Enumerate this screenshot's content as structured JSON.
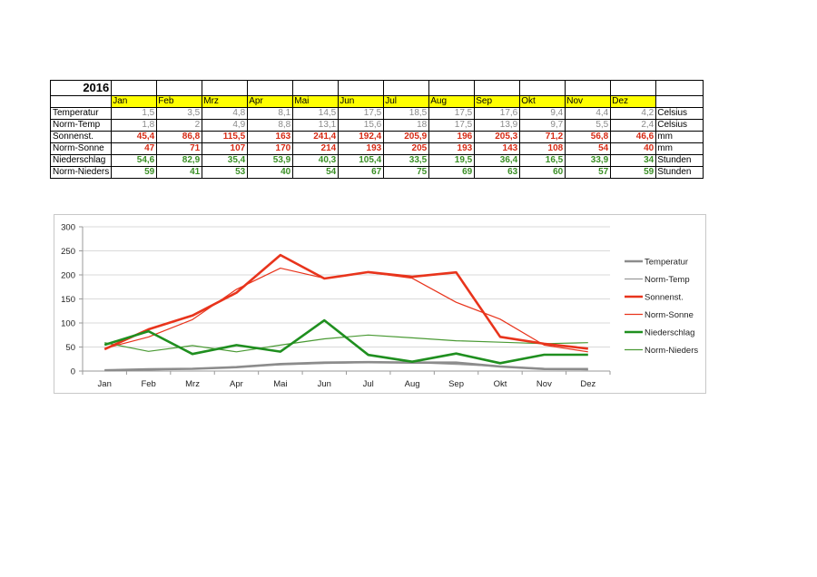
{
  "table": {
    "year": "2016",
    "months": [
      "Jan",
      "Feb",
      "Mrz",
      "Apr",
      "Mai",
      "Jun",
      "Jul",
      "Aug",
      "Sep",
      "Okt",
      "Nov",
      "Dez"
    ],
    "rows": [
      {
        "label": "Temperatur",
        "values": [
          "1,5",
          "3,5",
          "4,8",
          "8,1",
          "14,5",
          "17,5",
          "18,5",
          "17,5",
          "17,6",
          "9,4",
          "4,4",
          "4,2"
        ],
        "unit": "Celsius",
        "color": "#8a8a8a"
      },
      {
        "label": "Norm-Temp",
        "values": [
          "1,8",
          "2",
          "4,9",
          "8,8",
          "13,1",
          "15,6",
          "18",
          "17,5",
          "13,9",
          "9,7",
          "5,5",
          "2,4"
        ],
        "unit": "Celsius",
        "color": "#8a8a8a"
      },
      {
        "label": "Sonnenst.",
        "values": [
          "45,4",
          "86,8",
          "115,5",
          "163",
          "241,4",
          "192,4",
          "205,9",
          "196",
          "205,3",
          "71,2",
          "56,8",
          "46,6"
        ],
        "unit": "mm",
        "color": "#d62a14"
      },
      {
        "label": "Norm-Sonne",
        "values": [
          "47",
          "71",
          "107",
          "170",
          "214",
          "193",
          "205",
          "193",
          "143",
          "108",
          "54",
          "40"
        ],
        "unit": "mm",
        "color": "#d62a14"
      },
      {
        "label": "Niederschlag",
        "values": [
          "54,6",
          "82,9",
          "35,4",
          "53,9",
          "40,3",
          "105,4",
          "33,5",
          "19,5",
          "36,4",
          "16,5",
          "33,9",
          "34"
        ],
        "unit": "Stunden",
        "color": "#3a8f25"
      },
      {
        "label": "Norm-Nieders",
        "values": [
          "59",
          "41",
          "53",
          "40",
          "54",
          "67",
          "75",
          "69",
          "63",
          "60",
          "57",
          "59"
        ],
        "unit": "Stunden",
        "color": "#3a8f25"
      }
    ]
  },
  "chart_data": {
    "type": "line",
    "categories": [
      "Jan",
      "Feb",
      "Mrz",
      "Apr",
      "Mai",
      "Jun",
      "Jul",
      "Aug",
      "Sep",
      "Okt",
      "Nov",
      "Dez"
    ],
    "ylim": [
      0,
      300
    ],
    "yticks": [
      0,
      50,
      100,
      150,
      200,
      250,
      300
    ],
    "ytick_labels": [
      "0",
      "50",
      "100",
      "150",
      "200",
      "250",
      "300"
    ],
    "legend_position": "right",
    "grid": true,
    "series": [
      {
        "name": "Temperatur",
        "values": [
          1.5,
          3.5,
          4.8,
          8.1,
          14.5,
          17.5,
          18.5,
          17.5,
          17.6,
          9.4,
          4.4,
          4.2
        ],
        "color": "#8c8c8c",
        "weight": "thick"
      },
      {
        "name": "Norm-Temp",
        "values": [
          1.8,
          2,
          4.9,
          8.8,
          13.1,
          15.6,
          18,
          17.5,
          13.9,
          9.7,
          5.5,
          2.4
        ],
        "color": "#9a9a9a",
        "weight": "thin"
      },
      {
        "name": "Sonnenst.",
        "values": [
          45.4,
          86.8,
          115.5,
          163,
          241.4,
          192.4,
          205.9,
          196,
          205.3,
          71.2,
          56.8,
          46.6
        ],
        "color": "#e8341c",
        "weight": "thick"
      },
      {
        "name": "Norm-Sonne",
        "values": [
          47,
          71,
          107,
          170,
          214,
          193,
          205,
          193,
          143,
          108,
          54,
          40
        ],
        "color": "#e8341c",
        "weight": "thin"
      },
      {
        "name": "Niederschlag",
        "values": [
          54.6,
          82.9,
          35.4,
          53.9,
          40.3,
          105.4,
          33.5,
          19.5,
          36.4,
          16.5,
          33.9,
          34
        ],
        "color": "#1f8f1f",
        "weight": "thick"
      },
      {
        "name": "Norm-Nieders",
        "values": [
          59,
          41,
          53,
          40,
          54,
          67,
          75,
          69,
          63,
          60,
          57,
          59
        ],
        "color": "#4a9a34",
        "weight": "thin"
      }
    ]
  }
}
